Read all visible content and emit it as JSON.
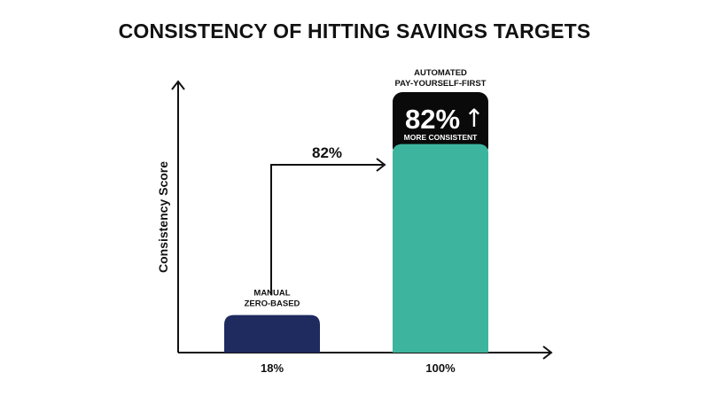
{
  "chart_data": {
    "type": "bar",
    "title": "CONSISTENCY OF HITTING SAVINGS TARGETS",
    "ylabel": "Consistency Score",
    "xlabel": "",
    "categories": [
      "MANUAL ZERO-BASED",
      "AUTOMATED PAY-YOURSELF-FIRST"
    ],
    "category_lines": [
      [
        "MANUAL",
        "ZERO-BASED"
      ],
      [
        "AUTOMATED",
        "PAY-YOURSELF-FIRST"
      ]
    ],
    "values": [
      18,
      100
    ],
    "value_labels": [
      "18%",
      "100%"
    ],
    "colors": [
      "#1f2a5e",
      "#3db59e"
    ],
    "ylim": [
      0,
      130
    ],
    "grid": false,
    "annotations": {
      "arrow_label": "82%",
      "callout_value": "82%",
      "callout_arrow": "↑",
      "callout_text": "MORE CONSISTENT",
      "callout_bg": "#0a0a0a"
    }
  }
}
